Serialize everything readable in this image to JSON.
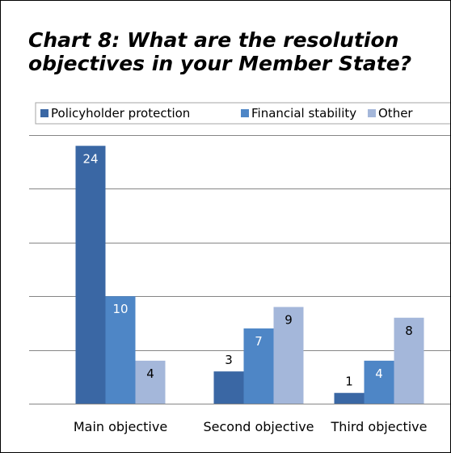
{
  "chart_data": {
    "type": "bar",
    "title": "Chart 8: What are the resolution objectives in your Member State?",
    "categories": [
      "Main objective",
      "Second objective",
      "Third objective"
    ],
    "series": [
      {
        "name": "Policyholder protection",
        "color": "#3A67A4",
        "values": [
          24,
          3,
          1
        ]
      },
      {
        "name": "Financial stability",
        "color": "#4E86C6",
        "values": [
          10,
          7,
          4
        ]
      },
      {
        "name": "Other",
        "color": "#A4B7DA",
        "values": [
          4,
          9,
          8
        ]
      }
    ],
    "ylim": [
      0,
      25
    ],
    "grid": true,
    "legend_position": "top",
    "data_labels": true
  }
}
